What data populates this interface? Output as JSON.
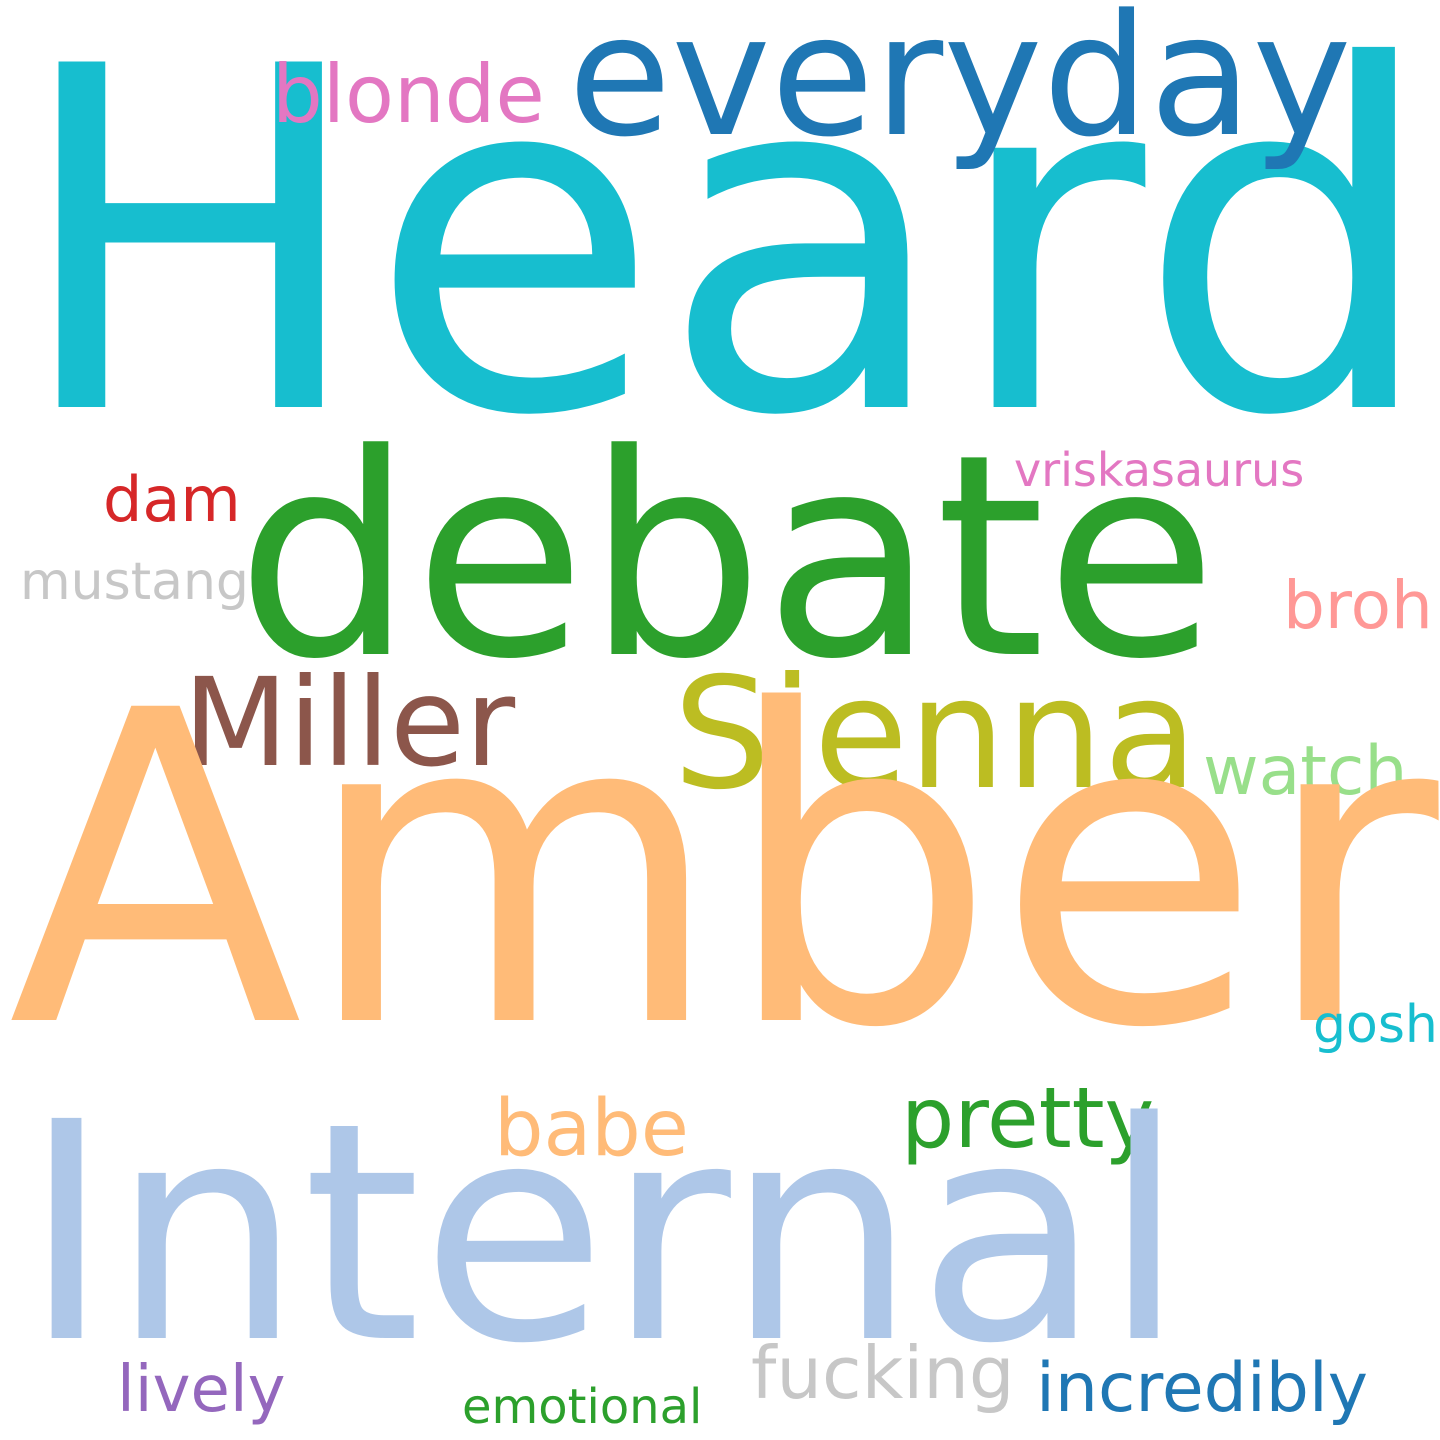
{
  "words": [
    {
      "text": "Heard",
      "color": "#17becf"
    },
    {
      "text": "everyday",
      "color": "#1f77b4"
    },
    {
      "text": "blonde",
      "color": "#e377c2"
    },
    {
      "text": "debate",
      "color": "#2ca02c"
    },
    {
      "text": "vriskasaurus",
      "color": "#e377c2"
    },
    {
      "text": "dam",
      "color": "#d62728"
    },
    {
      "text": "mustang",
      "color": "#c7c7c7"
    },
    {
      "text": "broh",
      "color": "#ff9896"
    },
    {
      "text": "Miller",
      "color": "#8c564b"
    },
    {
      "text": "Sienna",
      "color": "#bcbd22"
    },
    {
      "text": "watch",
      "color": "#98df8a"
    },
    {
      "text": "Amber",
      "color": "#ffbb78"
    },
    {
      "text": "gosh",
      "color": "#17becf"
    },
    {
      "text": "pretty",
      "color": "#2ca02c"
    },
    {
      "text": "babe",
      "color": "#ffbb78"
    },
    {
      "text": "Internal",
      "color": "#aec7e8"
    },
    {
      "text": "fucking",
      "color": "#c7c7c7"
    },
    {
      "text": "lively",
      "color": "#9467bd"
    },
    {
      "text": "incredibly",
      "color": "#1f77b4"
    },
    {
      "text": "emotional",
      "color": "#2ca02c"
    }
  ]
}
